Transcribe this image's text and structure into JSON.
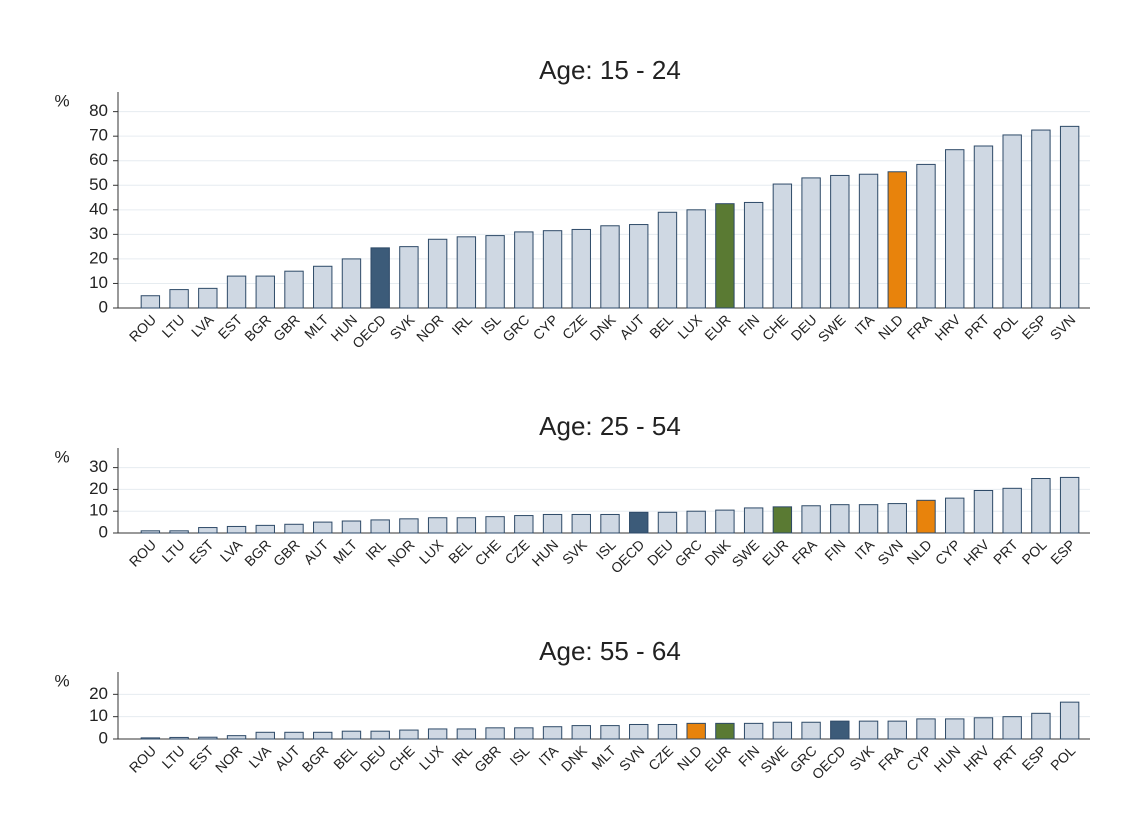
{
  "chart_data": [
    {
      "type": "bar",
      "title": "Age: 15 - 24",
      "ylabel": "%",
      "categories": [
        "ROU",
        "LTU",
        "LVA",
        "EST",
        "BGR",
        "GBR",
        "MLT",
        "HUN",
        "OECD",
        "SVK",
        "NOR",
        "IRL",
        "ISL",
        "GRC",
        "CYP",
        "CZE",
        "DNK",
        "AUT",
        "BEL",
        "LUX",
        "EUR",
        "FIN",
        "CHE",
        "DEU",
        "SWE",
        "ITA",
        "NLD",
        "FRA",
        "HRV",
        "PRT",
        "POL",
        "ESP",
        "SVN"
      ],
      "values": [
        5,
        7.5,
        8,
        13,
        13,
        15,
        17,
        20,
        24.5,
        25,
        28,
        29,
        29.5,
        31,
        31.5,
        32,
        33.5,
        34,
        39,
        40,
        42.5,
        43,
        50.5,
        53,
        54,
        54.5,
        55.5,
        58.5,
        64.5,
        66,
        70.5,
        72.5,
        74
      ],
      "color": "#cfd8e3",
      "highlight_colors": {
        "OECD": "#3c5b79",
        "EUR": "#5a7a33",
        "NLD": "#e8830c"
      },
      "ylim": [
        0,
        88
      ],
      "yticks": [
        0,
        10,
        20,
        30,
        40,
        50,
        60,
        70,
        80
      ],
      "grid": true
    },
    {
      "type": "bar",
      "title": "Age: 25 - 54",
      "ylabel": "%",
      "categories": [
        "ROU",
        "LTU",
        "EST",
        "LVA",
        "BGR",
        "GBR",
        "AUT",
        "MLT",
        "IRL",
        "NOR",
        "LUX",
        "BEL",
        "CHE",
        "CZE",
        "HUN",
        "SVK",
        "ISL",
        "OECD",
        "DEU",
        "GRC",
        "DNK",
        "SWE",
        "EUR",
        "FRA",
        "FIN",
        "ITA",
        "SVN",
        "NLD",
        "CYP",
        "HRV",
        "PRT",
        "POL",
        "ESP"
      ],
      "values": [
        1,
        1,
        2.5,
        3,
        3.5,
        4,
        5,
        5.5,
        6,
        6.5,
        7,
        7,
        7.5,
        8,
        8.5,
        8.5,
        8.5,
        9.5,
        9.5,
        10,
        10.5,
        11.5,
        12,
        12.5,
        13,
        13,
        13.5,
        15,
        16,
        19.5,
        20.5,
        25,
        25.5
      ],
      "color": "#cfd8e3",
      "highlight_colors": {
        "OECD": "#3c5b79",
        "EUR": "#5a7a33",
        "NLD": "#e8830c"
      },
      "ylim": [
        0,
        39
      ],
      "yticks": [
        0,
        10,
        20,
        30
      ],
      "grid": true
    },
    {
      "type": "bar",
      "title": "Age: 55 - 64",
      "ylabel": "%",
      "categories": [
        "ROU",
        "LTU",
        "EST",
        "NOR",
        "LVA",
        "AUT",
        "BGR",
        "BEL",
        "DEU",
        "CHE",
        "LUX",
        "IRL",
        "GBR",
        "ISL",
        "ITA",
        "DNK",
        "MLT",
        "SVN",
        "CZE",
        "NLD",
        "EUR",
        "FIN",
        "SWE",
        "GRC",
        "OECD",
        "SVK",
        "FRA",
        "CYP",
        "HUN",
        "HRV",
        "PRT",
        "ESP",
        "POL"
      ],
      "values": [
        0.5,
        0.7,
        0.8,
        1.5,
        3,
        3,
        3,
        3.5,
        3.5,
        4,
        4.5,
        4.5,
        5,
        5,
        5.5,
        6,
        6,
        6.5,
        6.5,
        7,
        7,
        7,
        7.5,
        7.5,
        8,
        8,
        8,
        9,
        9,
        9.5,
        10,
        11.5,
        16.5
      ],
      "color": "#cfd8e3",
      "highlight_colors": {
        "OECD": "#3c5b79",
        "EUR": "#5a7a33",
        "NLD": "#e8830c"
      },
      "ylim": [
        0,
        30
      ],
      "yticks": [
        0,
        10,
        20
      ],
      "grid": true
    }
  ]
}
